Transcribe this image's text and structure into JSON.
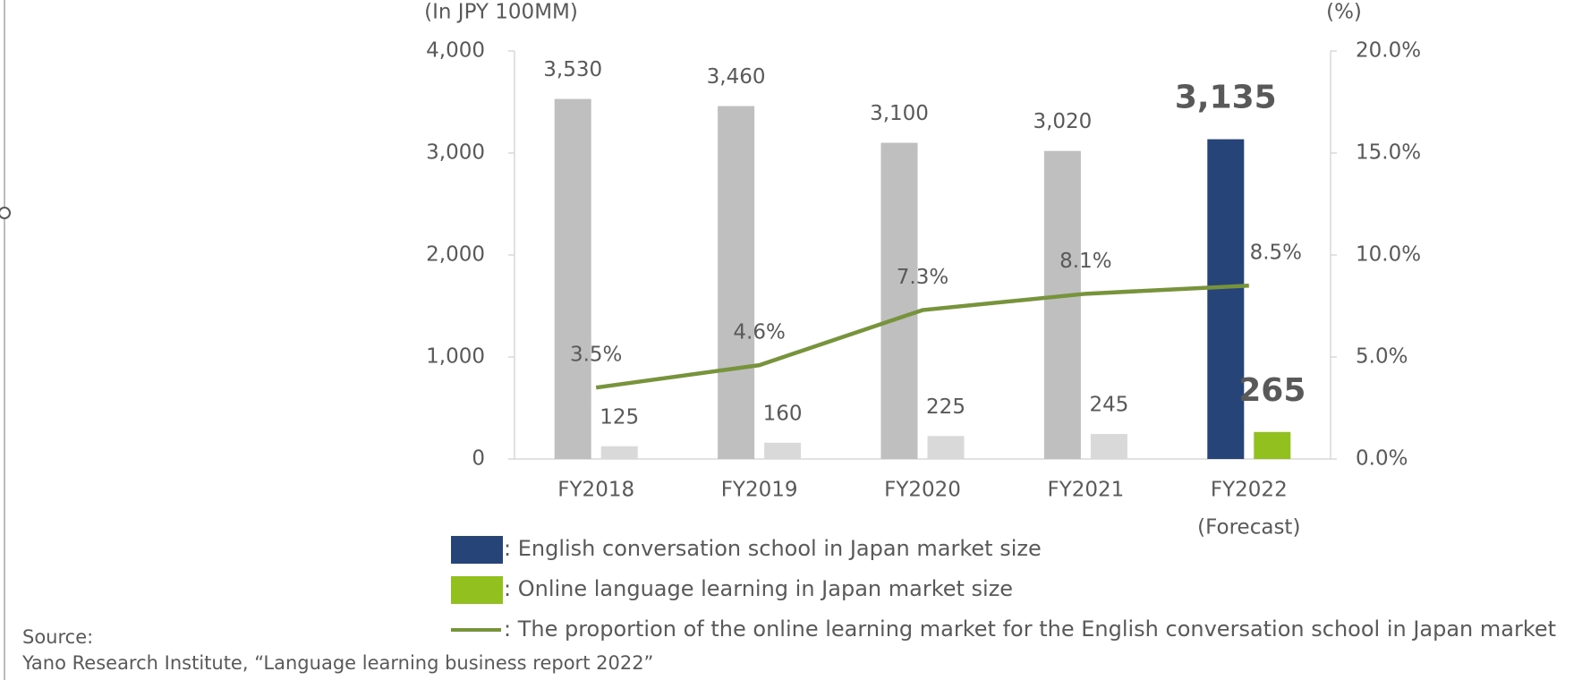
{
  "chart_data": {
    "type": "bar",
    "y_label": "(In JPY 100MM)",
    "y2_label": "(%)",
    "categories": [
      "FY2018",
      "FY2019",
      "FY2020",
      "FY2021",
      "FY2022"
    ],
    "category_note": "(Forecast)",
    "series": [
      {
        "name": ": English conversation school in Japan market size",
        "color": "#264478",
        "point_colors": [
          "#bfbfbf",
          "#bfbfbf",
          "#bfbfbf",
          "#bfbfbf",
          "#264478"
        ],
        "label_colors": [
          "#404040",
          "#404040",
          "#404040",
          "#404040",
          "#ed9a3c"
        ],
        "values": [
          3530,
          3460,
          3100,
          3020,
          3135
        ],
        "value_labels": [
          "3,530",
          "3,460",
          "3,100",
          "3,020",
          "3,135"
        ]
      },
      {
        "name": ": Online language learning in Japan market size",
        "color": "#92c01f",
        "point_colors": [
          "#d9d9d9",
          "#d9d9d9",
          "#d9d9d9",
          "#d9d9d9",
          "#92c01f"
        ],
        "label_colors": [
          "#404040",
          "#404040",
          "#404040",
          "#404040",
          "#ed9a3c"
        ],
        "values": [
          125,
          160,
          225,
          245,
          265
        ]
      },
      {
        "name": ": The proportion of the online learning market for the English conversation school in Japan market",
        "color": "#77933c",
        "type": "line",
        "axis": "y2",
        "values": [
          3.5,
          4.6,
          7.3,
          8.1,
          8.5
        ],
        "value_labels": [
          "3.5%",
          "4.6%",
          "7.3%",
          "8.1%",
          "8.5%"
        ]
      }
    ],
    "ylim": [
      0,
      4000
    ],
    "yticks": [
      0,
      {
        "value": 1000,
        "label": "1,000"
      },
      {
        "value": 2000,
        "label": "2,000"
      },
      {
        "value": 3000,
        "label": "3,000"
      },
      {
        "value": 4000,
        "label": "4,000"
      }
    ],
    "y2lim": [
      0,
      20
    ],
    "y2ticks": [
      {
        "value": 0,
        "label": "0.0%"
      },
      {
        "value": 5,
        "label": "5.0%"
      },
      {
        "value": 10,
        "label": "10.0%"
      },
      {
        "value": 15,
        "label": "15.0%"
      },
      {
        "value": 20,
        "label": "20.0%"
      }
    ],
    "grid": false,
    "source_title": "Source:",
    "source": "Yano Research Institute, “Language learning business report 2022”"
  }
}
